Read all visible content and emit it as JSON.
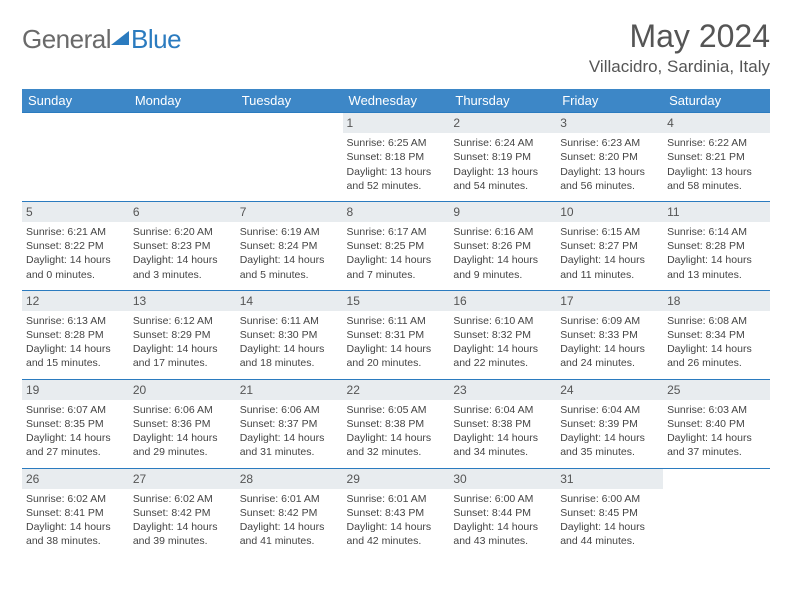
{
  "logo": {
    "part1": "General",
    "part2": "Blue"
  },
  "title": "May 2024",
  "location": "Villacidro, Sardinia, Italy",
  "colors": {
    "header_bg": "#3d87c7",
    "border": "#2b7bbf",
    "daynum_bg": "#e8ecef",
    "text": "#444444",
    "title_text": "#555555"
  },
  "days_of_week": [
    "Sunday",
    "Monday",
    "Tuesday",
    "Wednesday",
    "Thursday",
    "Friday",
    "Saturday"
  ],
  "weeks": [
    [
      null,
      null,
      null,
      {
        "n": "1",
        "sr": "6:25 AM",
        "ss": "8:18 PM",
        "dl": "13 hours and 52 minutes."
      },
      {
        "n": "2",
        "sr": "6:24 AM",
        "ss": "8:19 PM",
        "dl": "13 hours and 54 minutes."
      },
      {
        "n": "3",
        "sr": "6:23 AM",
        "ss": "8:20 PM",
        "dl": "13 hours and 56 minutes."
      },
      {
        "n": "4",
        "sr": "6:22 AM",
        "ss": "8:21 PM",
        "dl": "13 hours and 58 minutes."
      }
    ],
    [
      {
        "n": "5",
        "sr": "6:21 AM",
        "ss": "8:22 PM",
        "dl": "14 hours and 0 minutes."
      },
      {
        "n": "6",
        "sr": "6:20 AM",
        "ss": "8:23 PM",
        "dl": "14 hours and 3 minutes."
      },
      {
        "n": "7",
        "sr": "6:19 AM",
        "ss": "8:24 PM",
        "dl": "14 hours and 5 minutes."
      },
      {
        "n": "8",
        "sr": "6:17 AM",
        "ss": "8:25 PM",
        "dl": "14 hours and 7 minutes."
      },
      {
        "n": "9",
        "sr": "6:16 AM",
        "ss": "8:26 PM",
        "dl": "14 hours and 9 minutes."
      },
      {
        "n": "10",
        "sr": "6:15 AM",
        "ss": "8:27 PM",
        "dl": "14 hours and 11 minutes."
      },
      {
        "n": "11",
        "sr": "6:14 AM",
        "ss": "8:28 PM",
        "dl": "14 hours and 13 minutes."
      }
    ],
    [
      {
        "n": "12",
        "sr": "6:13 AM",
        "ss": "8:28 PM",
        "dl": "14 hours and 15 minutes."
      },
      {
        "n": "13",
        "sr": "6:12 AM",
        "ss": "8:29 PM",
        "dl": "14 hours and 17 minutes."
      },
      {
        "n": "14",
        "sr": "6:11 AM",
        "ss": "8:30 PM",
        "dl": "14 hours and 18 minutes."
      },
      {
        "n": "15",
        "sr": "6:11 AM",
        "ss": "8:31 PM",
        "dl": "14 hours and 20 minutes."
      },
      {
        "n": "16",
        "sr": "6:10 AM",
        "ss": "8:32 PM",
        "dl": "14 hours and 22 minutes."
      },
      {
        "n": "17",
        "sr": "6:09 AM",
        "ss": "8:33 PM",
        "dl": "14 hours and 24 minutes."
      },
      {
        "n": "18",
        "sr": "6:08 AM",
        "ss": "8:34 PM",
        "dl": "14 hours and 26 minutes."
      }
    ],
    [
      {
        "n": "19",
        "sr": "6:07 AM",
        "ss": "8:35 PM",
        "dl": "14 hours and 27 minutes."
      },
      {
        "n": "20",
        "sr": "6:06 AM",
        "ss": "8:36 PM",
        "dl": "14 hours and 29 minutes."
      },
      {
        "n": "21",
        "sr": "6:06 AM",
        "ss": "8:37 PM",
        "dl": "14 hours and 31 minutes."
      },
      {
        "n": "22",
        "sr": "6:05 AM",
        "ss": "8:38 PM",
        "dl": "14 hours and 32 minutes."
      },
      {
        "n": "23",
        "sr": "6:04 AM",
        "ss": "8:38 PM",
        "dl": "14 hours and 34 minutes."
      },
      {
        "n": "24",
        "sr": "6:04 AM",
        "ss": "8:39 PM",
        "dl": "14 hours and 35 minutes."
      },
      {
        "n": "25",
        "sr": "6:03 AM",
        "ss": "8:40 PM",
        "dl": "14 hours and 37 minutes."
      }
    ],
    [
      {
        "n": "26",
        "sr": "6:02 AM",
        "ss": "8:41 PM",
        "dl": "14 hours and 38 minutes."
      },
      {
        "n": "27",
        "sr": "6:02 AM",
        "ss": "8:42 PM",
        "dl": "14 hours and 39 minutes."
      },
      {
        "n": "28",
        "sr": "6:01 AM",
        "ss": "8:42 PM",
        "dl": "14 hours and 41 minutes."
      },
      {
        "n": "29",
        "sr": "6:01 AM",
        "ss": "8:43 PM",
        "dl": "14 hours and 42 minutes."
      },
      {
        "n": "30",
        "sr": "6:00 AM",
        "ss": "8:44 PM",
        "dl": "14 hours and 43 minutes."
      },
      {
        "n": "31",
        "sr": "6:00 AM",
        "ss": "8:45 PM",
        "dl": "14 hours and 44 minutes."
      },
      null
    ]
  ],
  "labels": {
    "sunrise": "Sunrise: ",
    "sunset": "Sunset: ",
    "daylight": "Daylight: "
  }
}
